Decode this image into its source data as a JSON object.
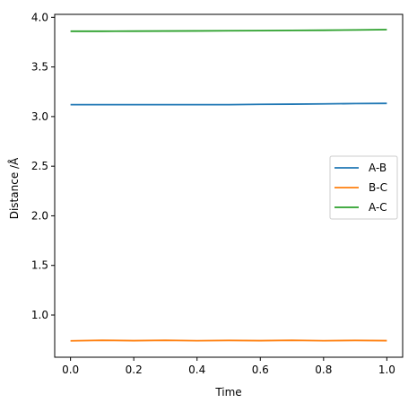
{
  "chart_data": {
    "type": "line",
    "title": "",
    "xlabel": "Time",
    "ylabel": "Distance /Å",
    "xlim": [
      -0.05,
      1.05
    ],
    "ylim": [
      0.575,
      4.03
    ],
    "xticks": [
      0.0,
      0.2,
      0.4,
      0.6,
      0.8,
      1.0
    ],
    "xtick_labels": [
      "0.0",
      "0.2",
      "0.4",
      "0.6",
      "0.8",
      "1.0"
    ],
    "yticks": [
      1.0,
      1.5,
      2.0,
      2.5,
      3.0,
      3.5,
      4.0
    ],
    "ytick_labels": [
      "1.0",
      "1.5",
      "2.0",
      "2.5",
      "3.0",
      "3.5",
      "4.0"
    ],
    "grid": false,
    "legend": "center-right",
    "x": [
      0.0,
      0.1,
      0.2,
      0.3,
      0.4,
      0.5,
      0.6,
      0.7,
      0.8,
      0.9,
      1.0
    ],
    "series": [
      {
        "name": "A-B",
        "color": "#1f77b4",
        "values": [
          3.12,
          3.12,
          3.12,
          3.12,
          3.12,
          3.12,
          3.123,
          3.125,
          3.128,
          3.131,
          3.133
        ]
      },
      {
        "name": "B-C",
        "color": "#ff7f0e",
        "values": [
          0.74,
          0.745,
          0.742,
          0.745,
          0.741,
          0.744,
          0.742,
          0.745,
          0.741,
          0.744,
          0.742
        ]
      },
      {
        "name": "A-C",
        "color": "#2ca02c",
        "values": [
          3.86,
          3.86,
          3.861,
          3.862,
          3.863,
          3.865,
          3.866,
          3.868,
          3.87,
          3.873,
          3.876
        ]
      }
    ]
  }
}
